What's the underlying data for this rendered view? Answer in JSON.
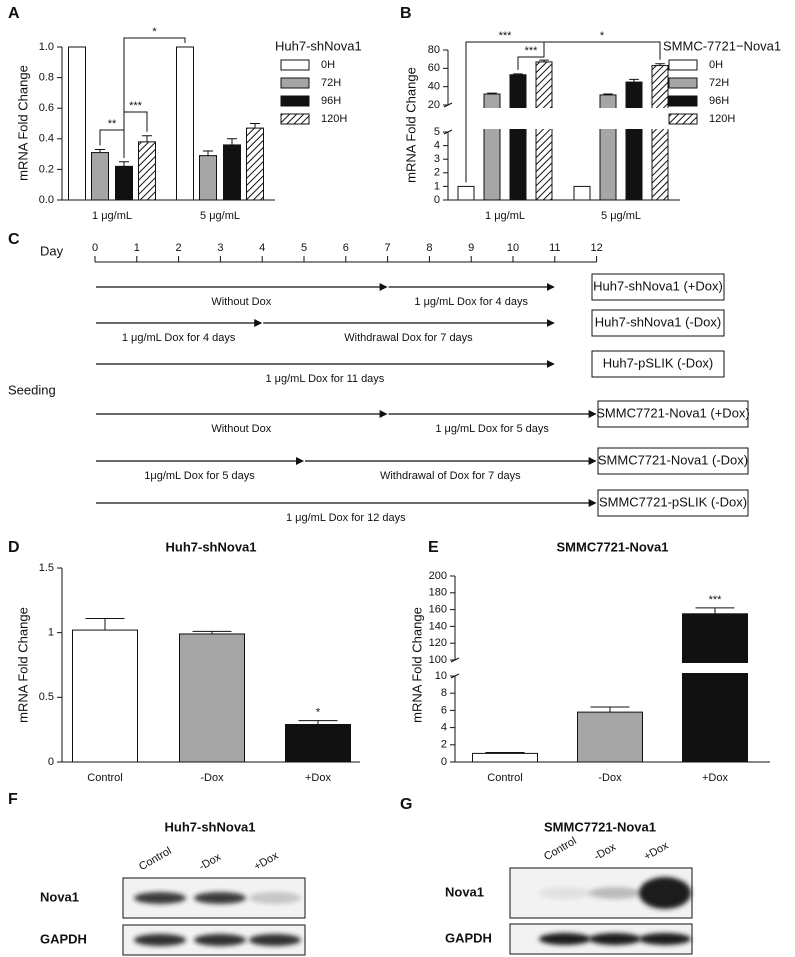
{
  "chart_data": [
    {
      "type": "bar",
      "label": "A",
      "y_label": "mRNA Fold Change",
      "legend_title": "Huh7-shNova1",
      "categories": [
        "1 μg/mL",
        "5 μg/mL"
      ],
      "series": [
        {
          "name": "0H",
          "color": "#ffffff",
          "values": [
            1,
            1
          ]
        },
        {
          "name": "72H",
          "color": "#a6a6a6",
          "values": [
            0.31,
            0.29
          ],
          "errors": [
            0.02,
            0.03
          ]
        },
        {
          "name": "96H",
          "color": "#111111",
          "values": [
            0.22,
            0.36
          ],
          "errors": [
            0.03,
            0.04
          ]
        },
        {
          "name": "120H",
          "color": "#ffffff",
          "hatch": true,
          "values": [
            0.38,
            0.47
          ],
          "errors": [
            0.04,
            0.03
          ]
        }
      ],
      "ylim": [
        0,
        1
      ],
      "yticks": [
        {
          "value": 0,
          "label": "0.0"
        },
        0.2,
        0.4,
        0.6,
        0.8,
        {
          "value": 1,
          "label": "1.0"
        }
      ],
      "annotations": [
        "**",
        "***",
        "*"
      ]
    },
    {
      "type": "bar",
      "label": "B",
      "y_label": "mRNA Fold Change",
      "legend_title": "SMMC-7721−Nova1",
      "categories": [
        "1 μg/mL",
        "5 μg/mL"
      ],
      "series": [
        {
          "name": "0H",
          "color": "#ffffff",
          "values": [
            1,
            1
          ]
        },
        {
          "name": "72H",
          "color": "#a6a6a6",
          "values": [
            32,
            31
          ],
          "errors": [
            1,
            1
          ]
        },
        {
          "name": "96H",
          "color": "#111111",
          "values": [
            53,
            45
          ],
          "errors": [
            1,
            3
          ]
        },
        {
          "name": "120H",
          "color": "#ffffff",
          "hatch": true,
          "values": [
            67,
            63
          ],
          "errors": [
            2,
            2
          ]
        }
      ],
      "segments": [
        {
          "ylim": [
            0,
            5
          ],
          "yticks": [
            0,
            1,
            2,
            3,
            4,
            5
          ]
        },
        {
          "ylim": [
            20,
            80
          ],
          "yticks": [
            20,
            40,
            60,
            80
          ]
        }
      ],
      "annotations": [
        "***",
        "***",
        "*"
      ]
    },
    {
      "type": "bar",
      "label": "D",
      "title": "Huh7-shNova1",
      "y_label": "mRNA Fold Change",
      "categories": [
        "Control",
        "-Dox",
        "+Dox"
      ],
      "values": [
        1.02,
        0.99,
        0.29
      ],
      "errors": [
        0.09,
        0.02,
        0.03
      ],
      "colors": [
        "#ffffff",
        "#a6a6a6",
        "#111111"
      ],
      "ylim": [
        0,
        1.5
      ],
      "yticks": [
        0,
        0.5,
        1,
        1.5
      ],
      "annotations": [
        "*"
      ]
    },
    {
      "type": "bar",
      "label": "E",
      "title": "SMMC7721-Nova1",
      "y_label": "mRNA Fold Change",
      "categories": [
        "Control",
        "-Dox",
        "+Dox"
      ],
      "values": [
        1,
        5.8,
        155
      ],
      "errors": [
        0.1,
        0.6,
        7
      ],
      "colors": [
        "#ffffff",
        "#a6a6a6",
        "#111111"
      ],
      "segments": [
        {
          "ylim": [
            0,
            10
          ],
          "yticks": [
            0,
            2,
            4,
            6,
            8,
            10
          ]
        },
        {
          "ylim": [
            100,
            200
          ],
          "yticks": [
            100,
            120,
            140,
            160,
            180,
            200
          ]
        }
      ],
      "annotations": [
        "***"
      ]
    }
  ],
  "timeline": {
    "label": "C",
    "day_label": "Day",
    "seeding_label": "Seeding",
    "days": [
      0,
      1,
      2,
      3,
      4,
      5,
      6,
      7,
      8,
      9,
      10,
      11,
      12
    ],
    "rows": [
      {
        "segments": [
          {
            "text": "Without Dox",
            "from": 0,
            "to": 7
          },
          {
            "text": "1 μg/mL Dox for 4 days",
            "from": 7,
            "to": 11
          }
        ],
        "box": "Huh7-shNova1 (+Dox)"
      },
      {
        "segments": [
          {
            "text": "1 μg/mL Dox for 4 days",
            "from": 0,
            "to": 4
          },
          {
            "text": "Withdrawal Dox for 7 days",
            "from": 4,
            "to": 11
          }
        ],
        "box": "Huh7-shNova1 (-Dox)"
      },
      {
        "segments": [
          {
            "text": "1 μg/mL Dox for 11 days",
            "from": 0,
            "to": 11
          }
        ],
        "box": "Huh7-pSLIK (-Dox)"
      },
      {
        "segments": [
          {
            "text": "Without Dox",
            "from": 0,
            "to": 7
          },
          {
            "text": "1 μg/mL Dox for 5 days",
            "from": 7,
            "to": 12
          }
        ],
        "box": "SMMC7721-Nova1 (+Dox)"
      },
      {
        "segments": [
          {
            "text": "1μg/mL Dox for 5 days",
            "from": 0,
            "to": 5
          },
          {
            "text": "Withdrawal of Dox for 7 days",
            "from": 5,
            "to": 12
          }
        ],
        "box": "SMMC7721-Nova1 (-Dox)"
      },
      {
        "segments": [
          {
            "text": "1 μg/mL Dox for 12 days",
            "from": 0,
            "to": 12
          }
        ],
        "box": "SMMC7721-pSLIK (-Dox)"
      }
    ]
  },
  "blots": [
    {
      "label": "F",
      "title": "Huh7-shNova1",
      "lanes": [
        "Control",
        "-Dox",
        "+Dox"
      ],
      "rows": [
        "Nova1",
        "GAPDH"
      ]
    },
    {
      "label": "G",
      "title": "SMMC7721-Nova1",
      "lanes": [
        "Control",
        "-Dox",
        "+Dox"
      ],
      "rows": [
        "Nova1",
        "GAPDH"
      ]
    }
  ]
}
